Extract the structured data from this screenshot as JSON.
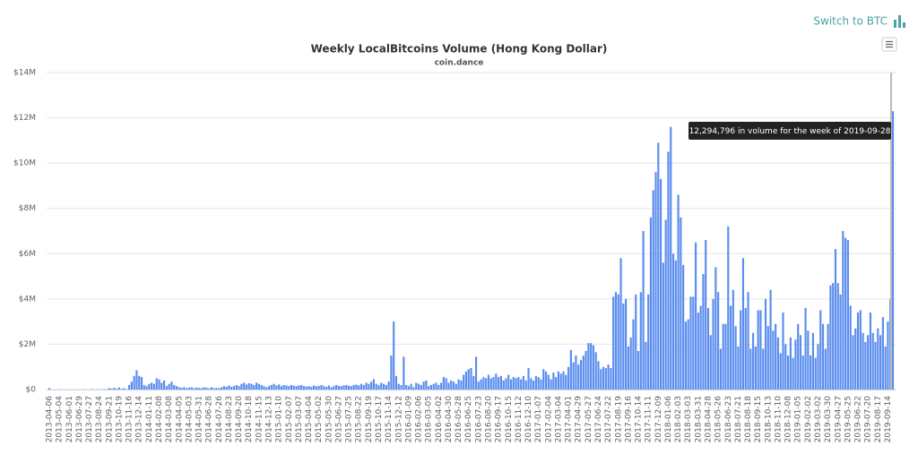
{
  "header": {
    "switch_label": "Switch to BTC"
  },
  "chart_data": {
    "type": "bar",
    "title": "Weekly LocalBitcoins Volume (Hong Kong Dollar)",
    "subtitle": "coin.dance",
    "tooltip": "12,294,796 in volume for the week of 2019-09-28",
    "color": "#5b8def",
    "grid": true,
    "ylim": [
      0,
      14000000
    ],
    "yticks": [
      {
        "value": 0,
        "label": "$0"
      },
      {
        "value": 2000000,
        "label": "$2M"
      },
      {
        "value": 4000000,
        "label": "$4M"
      },
      {
        "value": 6000000,
        "label": "$6M"
      },
      {
        "value": 8000000,
        "label": "$8M"
      },
      {
        "value": 10000000,
        "label": "$10M"
      },
      {
        "value": 12000000,
        "label": "$12M"
      },
      {
        "value": 14000000,
        "label": "$14M"
      }
    ],
    "categories": [
      "2013-04-06",
      null,
      null,
      null,
      "2013-05-04",
      null,
      null,
      null,
      "2013-06-01",
      null,
      null,
      null,
      "2013-06-29",
      null,
      null,
      null,
      "2013-07-27",
      null,
      null,
      null,
      "2013-08-24",
      null,
      null,
      null,
      "2013-09-21",
      null,
      null,
      null,
      "2013-10-19",
      null,
      null,
      null,
      "2013-11-16",
      null,
      null,
      null,
      "2013-12-14",
      null,
      null,
      null,
      "2014-01-11",
      null,
      null,
      null,
      "2014-02-08",
      null,
      null,
      null,
      "2014-03-08",
      null,
      null,
      null,
      "2014-04-05",
      null,
      null,
      null,
      "2014-05-03",
      null,
      null,
      null,
      "2014-05-31",
      null,
      null,
      null,
      "2014-06-28",
      null,
      null,
      null,
      "2014-07-26",
      null,
      null,
      null,
      "2014-08-23",
      null,
      null,
      null,
      "2014-09-20",
      null,
      null,
      null,
      "2014-10-18",
      null,
      null,
      null,
      "2014-11-15",
      null,
      null,
      null,
      "2014-12-13",
      null,
      null,
      null,
      "2015-01-10",
      null,
      null,
      null,
      "2015-02-07",
      null,
      null,
      null,
      "2015-03-07",
      null,
      null,
      null,
      "2015-04-04",
      null,
      null,
      null,
      "2015-05-02",
      null,
      null,
      null,
      "2015-05-30",
      null,
      null,
      null,
      "2015-06-27",
      null,
      null,
      null,
      "2015-07-25",
      null,
      null,
      null,
      "2015-08-22",
      null,
      null,
      null,
      "2015-09-19",
      null,
      null,
      null,
      "2015-10-17",
      null,
      null,
      null,
      "2015-11-14",
      null,
      null,
      null,
      "2015-12-12",
      null,
      null,
      null,
      "2016-01-09",
      null,
      null,
      null,
      "2016-02-06",
      null,
      null,
      null,
      "2016-03-05",
      null,
      null,
      null,
      "2016-04-02",
      null,
      null,
      null,
      "2016-04-30",
      null,
      null,
      null,
      "2016-05-28",
      null,
      null,
      null,
      "2016-06-25",
      null,
      null,
      null,
      "2016-07-23",
      null,
      null,
      null,
      "2016-08-20",
      null,
      null,
      null,
      "2016-09-17",
      null,
      null,
      null,
      "2016-10-15",
      null,
      null,
      null,
      "2016-11-12",
      null,
      null,
      null,
      "2016-12-10",
      null,
      null,
      null,
      "2017-01-07",
      null,
      null,
      null,
      "2017-02-04",
      null,
      null,
      null,
      "2017-03-04",
      null,
      null,
      null,
      "2017-04-01",
      null,
      null,
      null,
      "2017-04-29",
      null,
      null,
      null,
      "2017-05-27",
      null,
      null,
      null,
      "2017-06-24",
      null,
      null,
      null,
      "2017-07-22",
      null,
      null,
      null,
      "2017-08-19",
      null,
      null,
      null,
      "2017-09-16",
      null,
      null,
      null,
      "2017-10-14",
      null,
      null,
      null,
      "2017-11-11",
      null,
      null,
      null,
      "2017-12-09",
      null,
      null,
      null,
      "2018-01-06",
      null,
      null,
      null,
      "2018-02-03",
      null,
      null,
      null,
      "2018-03-03",
      null,
      null,
      null,
      "2018-03-31",
      null,
      null,
      null,
      "2018-04-28",
      null,
      null,
      null,
      "2018-05-26",
      null,
      null,
      null,
      "2018-06-23",
      null,
      null,
      null,
      "2018-07-21",
      null,
      null,
      null,
      "2018-08-18",
      null,
      null,
      null,
      "2018-09-15",
      null,
      null,
      null,
      "2018-10-13",
      null,
      null,
      null,
      "2018-11-10",
      null,
      null,
      null,
      "2018-12-08",
      null,
      null,
      null,
      "2019-01-05",
      null,
      null,
      null,
      "2019-02-02",
      null,
      null,
      null,
      "2019-03-02",
      null,
      null,
      null,
      "2019-03-30",
      null,
      null,
      null,
      "2019-04-27",
      null,
      null,
      null,
      "2019-05-25",
      null,
      null,
      null,
      "2019-06-22",
      null,
      null,
      null,
      "2019-07-20",
      null,
      null,
      null,
      "2019-08-17",
      null,
      null,
      null,
      "2019-09-14",
      null,
      null
    ],
    "values": [
      60000,
      0,
      0,
      0,
      10000,
      0,
      0,
      0,
      0,
      0,
      0,
      0,
      0,
      0,
      10000,
      0,
      0,
      20000,
      0,
      10000,
      10000,
      0,
      20000,
      10000,
      60000,
      40000,
      80000,
      30000,
      90000,
      30000,
      60000,
      20000,
      200000,
      350000,
      600000,
      850000,
      600000,
      550000,
      200000,
      150000,
      250000,
      300000,
      250000,
      500000,
      450000,
      300000,
      400000,
      150000,
      250000,
      350000,
      200000,
      150000,
      100000,
      80000,
      100000,
      60000,
      80000,
      100000,
      60000,
      90000,
      70000,
      60000,
      100000,
      80000,
      50000,
      100000,
      60000,
      70000,
      60000,
      100000,
      150000,
      120000,
      180000,
      120000,
      150000,
      200000,
      150000,
      250000,
      300000,
      220000,
      280000,
      250000,
      200000,
      300000,
      250000,
      200000,
      150000,
      100000,
      150000,
      200000,
      250000,
      180000,
      220000,
      150000,
      200000,
      180000,
      150000,
      200000,
      170000,
      150000,
      180000,
      200000,
      150000,
      130000,
      150000,
      120000,
      180000,
      140000,
      160000,
      200000,
      150000,
      120000,
      180000,
      100000,
      150000,
      200000,
      160000,
      150000,
      180000,
      200000,
      170000,
      150000,
      200000,
      220000,
      180000,
      250000,
      200000,
      300000,
      250000,
      350000,
      450000,
      250000,
      200000,
      300000,
      250000,
      200000,
      350000,
      1500000,
      3000000,
      600000,
      250000,
      200000,
      1450000,
      200000,
      150000,
      250000,
      100000,
      300000,
      250000,
      200000,
      350000,
      400000,
      150000,
      200000,
      250000,
      300000,
      200000,
      300000,
      550000,
      500000,
      300000,
      400000,
      350000,
      250000,
      450000,
      400000,
      650000,
      800000,
      900000,
      950000,
      600000,
      1450000,
      350000,
      450000,
      550000,
      500000,
      650000,
      500000,
      550000,
      700000,
      550000,
      600000,
      400000,
      500000,
      650000,
      450000,
      550000,
      500000,
      550000,
      450000,
      600000,
      400000,
      950000,
      500000,
      400000,
      600000,
      550000,
      450000,
      900000,
      800000,
      650000,
      450000,
      750000,
      550000,
      800000,
      700000,
      800000,
      650000,
      1000000,
      1750000,
      1200000,
      1500000,
      1100000,
      1300000,
      1500000,
      1700000,
      2050000,
      2050000,
      1950000,
      1650000,
      1250000,
      900000,
      1000000,
      950000,
      1100000,
      950000,
      4100000,
      4300000,
      4200000,
      5800000,
      3800000,
      4000000,
      1900000,
      2300000,
      3100000,
      4200000,
      1700000,
      4300000,
      7000000,
      2100000,
      4200000,
      7600000,
      8800000,
      9600000,
      10900000,
      9300000,
      5600000,
      7500000,
      10500000,
      11600000,
      6000000,
      5700000,
      8600000,
      7600000,
      5500000,
      3000000,
      3100000,
      4100000,
      4100000,
      6500000,
      3400000,
      3700000,
      5100000,
      6600000,
      3600000,
      2400000,
      4000000,
      5400000,
      4300000,
      1800000,
      2900000,
      2900000,
      7200000,
      3700000,
      4400000,
      2800000,
      1900000,
      3500000,
      5800000,
      3600000,
      4300000,
      1800000,
      2500000,
      1900000,
      3500000,
      3500000,
      1800000,
      4000000,
      2800000,
      4400000,
      2600000,
      2900000,
      2300000,
      1600000,
      3400000,
      2000000,
      1500000,
      2300000,
      1400000,
      2200000,
      2900000,
      2400000,
      1500000,
      3600000,
      2600000,
      1500000,
      2500000,
      1400000,
      2000000,
      3500000,
      2900000,
      1800000,
      2900000,
      4600000,
      4700000,
      6200000,
      4700000,
      4200000,
      7000000,
      6700000,
      6600000,
      3700000,
      2400000,
      2700000,
      3400000,
      3500000,
      2500000,
      2100000,
      2400000,
      3400000,
      2500000,
      2100000,
      2700000,
      2400000,
      3200000,
      1900000,
      3000000,
      4000000,
      12294796
    ]
  }
}
